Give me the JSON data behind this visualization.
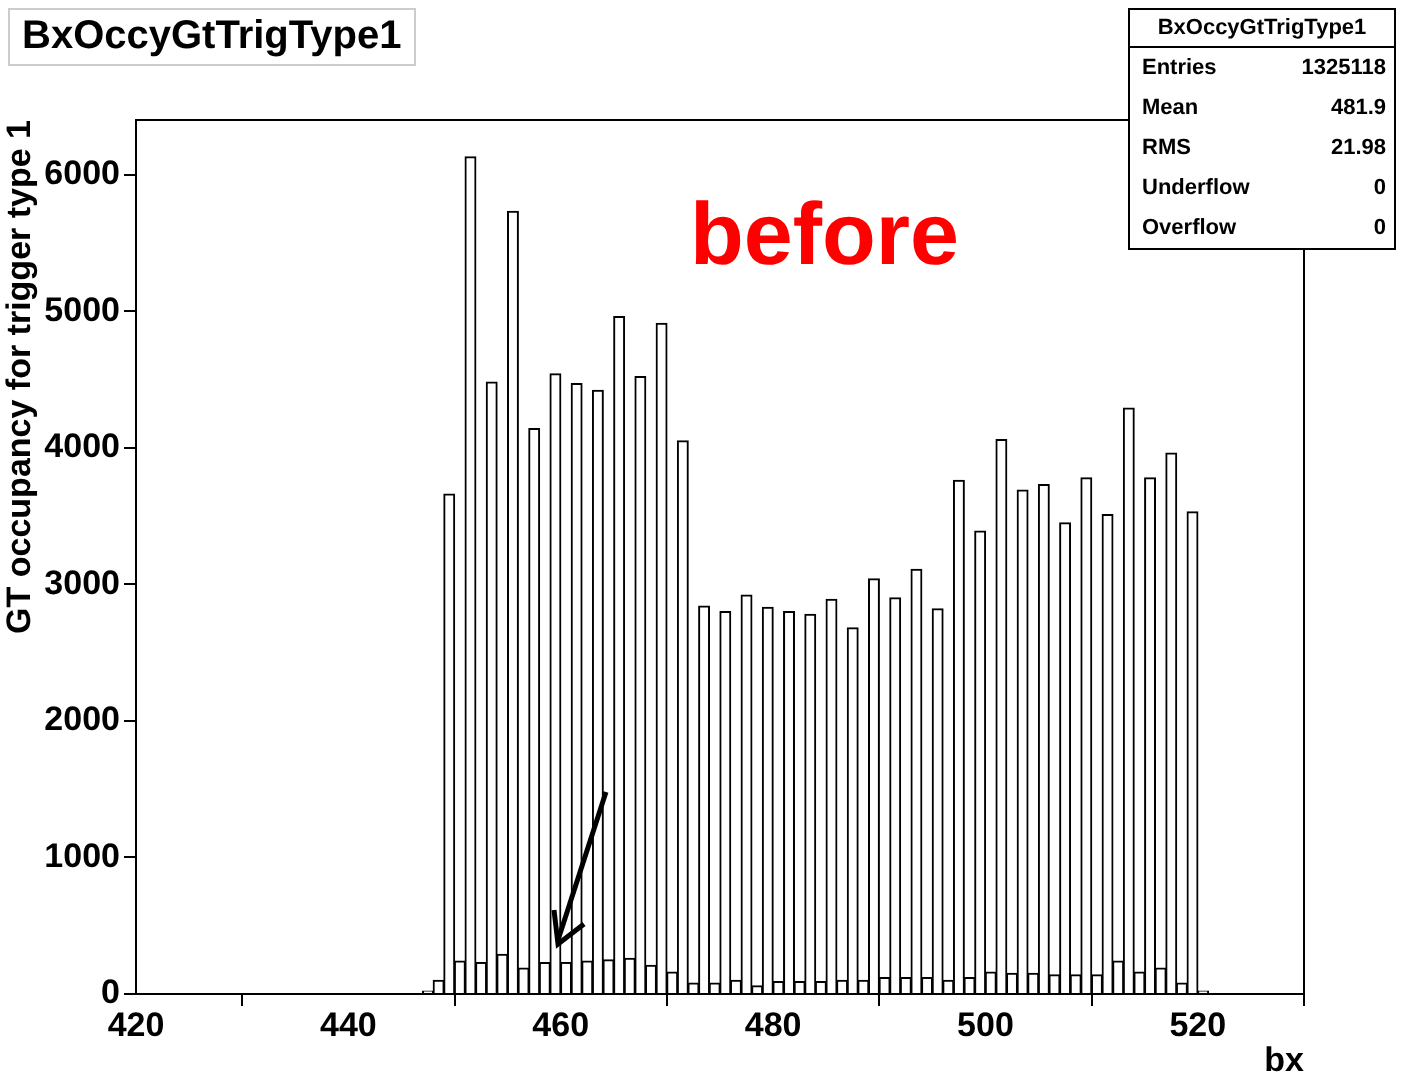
{
  "chart_data": {
    "type": "histogram",
    "title": "BxOccyGtTrigType1",
    "xlabel": "bx",
    "ylabel": "GT occupancy for trigger type 1",
    "bins": [
      420,
      421,
      422,
      423,
      424,
      425,
      426,
      427,
      428,
      429,
      430,
      431,
      432,
      433,
      434,
      435,
      436,
      437,
      438,
      439,
      440,
      441,
      442,
      443,
      444,
      445,
      446,
      447,
      448,
      449,
      450,
      451,
      452,
      453,
      454,
      455,
      456,
      457,
      458,
      459,
      460,
      461,
      462,
      463,
      464,
      465,
      466,
      467,
      468,
      469,
      470,
      471,
      472,
      473,
      474,
      475,
      476,
      477,
      478,
      479,
      480,
      481,
      482,
      483,
      484,
      485,
      486,
      487,
      488,
      489,
      490,
      491,
      492,
      493,
      494,
      495,
      496,
      497,
      498,
      499,
      500,
      501,
      502,
      503,
      504,
      505,
      506,
      507,
      508,
      509,
      510,
      511,
      512,
      513,
      514,
      515,
      516,
      517,
      518,
      519,
      520,
      521,
      522,
      523,
      524,
      525,
      526,
      527,
      528,
      529,
      530
    ],
    "values": [
      0,
      0,
      0,
      0,
      0,
      0,
      0,
      0,
      0,
      0,
      0,
      0,
      0,
      0,
      0,
      0,
      0,
      0,
      0,
      0,
      0,
      0,
      0,
      0,
      0,
      0,
      0,
      20,
      100,
      3660,
      240,
      6130,
      230,
      4480,
      290,
      5730,
      190,
      4140,
      230,
      4540,
      230,
      4470,
      240,
      4420,
      250,
      4960,
      260,
      4520,
      210,
      4910,
      160,
      4050,
      80,
      2840,
      80,
      2800,
      100,
      2920,
      60,
      2830,
      90,
      2800,
      90,
      2780,
      90,
      2890,
      100,
      2680,
      100,
      3040,
      120,
      2900,
      120,
      3110,
      120,
      2820,
      100,
      3760,
      120,
      3390,
      160,
      4060,
      150,
      3690,
      150,
      3730,
      140,
      3450,
      140,
      3780,
      140,
      3510,
      240,
      4290,
      160,
      3780,
      190,
      3960,
      80,
      3530,
      20,
      0,
      0,
      0,
      0,
      0,
      0,
      0,
      0,
      0
    ],
    "color": "#ffffff",
    "xlim": [
      420,
      530
    ],
    "ylim": [
      0,
      6400
    ],
    "xticks": [
      420,
      440,
      460,
      480,
      500,
      520
    ],
    "yticks": [
      0,
      1000,
      2000,
      3000,
      4000,
      5000,
      6000
    ],
    "grid": false,
    "annotations": [
      "before",
      "BxOccyGtTrigType1",
      "Entries 1325118",
      "Mean 481.9",
      "RMS 21.98",
      "Underflow 0",
      "Overflow 0"
    ]
  }
}
